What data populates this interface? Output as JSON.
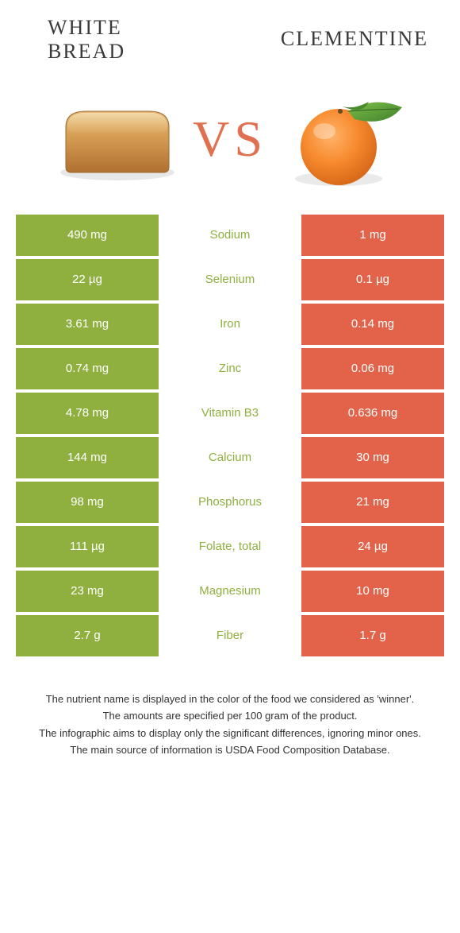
{
  "colors": {
    "left": "#8fb03f",
    "right": "#e2634a",
    "leftText": "#8fb03f",
    "rightText": "#e2634a",
    "vs": "#e07050"
  },
  "header": {
    "leftLine1": "WHITE",
    "leftLine2": "BREAD",
    "right": "CLEMENTINE",
    "vs": "VS"
  },
  "rows": [
    {
      "left": "490 mg",
      "name": "Sodium",
      "right": "1 mg",
      "winner": "left"
    },
    {
      "left": "22 µg",
      "name": "Selenium",
      "right": "0.1 µg",
      "winner": "left"
    },
    {
      "left": "3.61 mg",
      "name": "Iron",
      "right": "0.14 mg",
      "winner": "left"
    },
    {
      "left": "0.74 mg",
      "name": "Zinc",
      "right": "0.06 mg",
      "winner": "left"
    },
    {
      "left": "4.78 mg",
      "name": "Vitamin B3",
      "right": "0.636 mg",
      "winner": "left"
    },
    {
      "left": "144 mg",
      "name": "Calcium",
      "right": "30 mg",
      "winner": "left"
    },
    {
      "left": "98 mg",
      "name": "Phosphorus",
      "right": "21 mg",
      "winner": "left"
    },
    {
      "left": "111 µg",
      "name": "Folate, total",
      "right": "24 µg",
      "winner": "left"
    },
    {
      "left": "23 mg",
      "name": "Magnesium",
      "right": "10 mg",
      "winner": "left"
    },
    {
      "left": "2.7 g",
      "name": "Fiber",
      "right": "1.7 g",
      "winner": "left"
    }
  ],
  "footer": {
    "l1": "The nutrient name is displayed in the color of the food we considered as 'winner'.",
    "l2": "The amounts are specified per 100 gram of the product.",
    "l3": "The infographic aims to display only the significant differences, ignoring minor ones.",
    "l4": "The main source of information is USDA Food Composition Database."
  }
}
